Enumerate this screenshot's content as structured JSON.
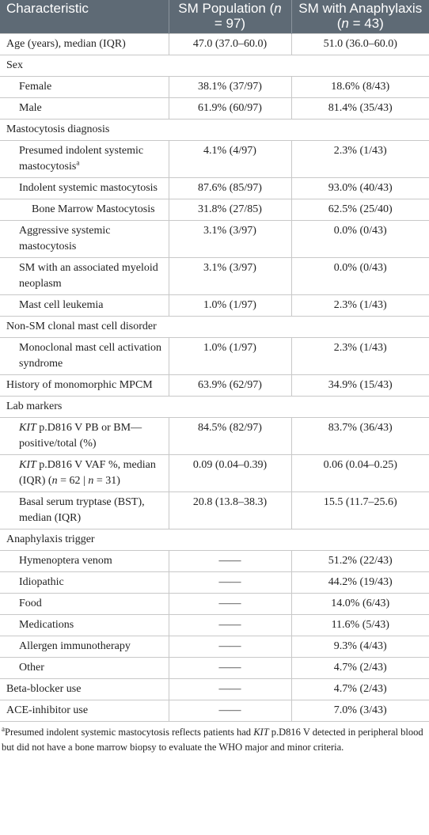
{
  "table": {
    "header": [
      "Characteristic",
      [
        "SM Population (",
        {
          "text": "n",
          "style": "italic"
        },
        " = 97)"
      ],
      [
        "SM with Anaphylaxis (",
        {
          "text": "n",
          "style": "italic"
        },
        " = 43)"
      ]
    ],
    "rows": [
      {
        "cells": [
          "Age (years), median (IQR)",
          "47.0 (37.0–60.0)",
          "51.0 (36.0–60.0)"
        ]
      },
      {
        "cells": [
          "Sex"
        ],
        "rows": [
          {
            "cells": [
              "Female",
              "38.1% (37/97)",
              "18.6% (8/43)"
            ]
          },
          {
            "cells": [
              "Male",
              "61.9% (60/97)",
              "81.4% (35/43)"
            ]
          }
        ]
      },
      {
        "cells": [
          "Mastocytosis diagnosis"
        ],
        "rows": [
          {
            "cells": [
              [
                "Presumed indolent systemic mastocytosis",
                {
                  "text": "a",
                  "style": "sup"
                }
              ],
              "4.1% (4/97)",
              "2.3% (1/43)"
            ]
          },
          {
            "cells": [
              "Indolent systemic mastocytosis",
              "87.6% (85/97)",
              "93.0% (40/43)"
            ],
            "rows": [
              {
                "cells": [
                  "Bone Marrow Mastocytosis",
                  "31.8% (27/85)",
                  "62.5% (25/40)"
                ]
              }
            ]
          },
          {
            "cells": [
              "Aggressive systemic mastocytosis",
              "3.1% (3/97)",
              "0.0% (0/43)"
            ]
          },
          {
            "cells": [
              "SM with an associated myeloid neoplasm",
              "3.1% (3/97)",
              "0.0% (0/43)"
            ]
          },
          {
            "cells": [
              "Mast cell leukemia",
              "1.0% (1/97)",
              "2.3% (1/43)"
            ]
          }
        ]
      },
      {
        "cells": [
          "Non-SM clonal mast cell disorder"
        ],
        "rows": [
          {
            "cells": [
              "Monoclonal mast cell activation syndrome",
              "1.0% (1/97)",
              "2.3% (1/43)"
            ]
          }
        ]
      },
      {
        "cells": [
          "History of monomorphic MPCM",
          "63.9% (62/97)",
          "34.9% (15/43)"
        ]
      },
      {
        "cells": [
          "Lab markers"
        ],
        "rows": [
          {
            "cells": [
              [
                {
                  "text": "KIT",
                  "style": "italic"
                },
                " p.D816 V PB or BM—positive/total (%)"
              ],
              "84.5% (82/97)",
              "83.7% (36/43)"
            ]
          },
          {
            "cells": [
              [
                {
                  "text": "KIT",
                  "style": "italic"
                },
                " p.D816 V VAF %, median (IQR) (",
                {
                  "text": "n",
                  "style": "italic"
                },
                " = 62 | ",
                {
                  "text": "n",
                  "style": "italic"
                },
                " = 31)"
              ],
              "0.09 (0.04–0.39)",
              "0.06 (0.04–0.25)"
            ]
          },
          {
            "cells": [
              "Basal serum tryptase (BST), median (IQR)",
              "20.8 (13.8–38.3)",
              "15.5 (11.7–25.6)"
            ]
          }
        ]
      },
      {
        "cells": [
          "Anaphylaxis trigger"
        ],
        "rows": [
          {
            "cells": [
              "Hymenoptera venom",
              "——",
              "51.2% (22/43)"
            ]
          },
          {
            "cells": [
              "Idiopathic",
              "——",
              "44.2% (19/43)"
            ]
          },
          {
            "cells": [
              "Food",
              "——",
              "14.0% (6/43)"
            ]
          },
          {
            "cells": [
              "Medications",
              "——",
              "11.6% (5/43)"
            ]
          },
          {
            "cells": [
              "Allergen immunotherapy",
              "——",
              "9.3% (4/43)"
            ]
          },
          {
            "cells": [
              "Other",
              "——",
              "4.7% (2/43)"
            ]
          }
        ]
      },
      {
        "cells": [
          "Beta-blocker use",
          "——",
          "4.7% (2/43)"
        ]
      },
      {
        "cells": [
          "ACE-inhibitor use",
          "——",
          "7.0% (3/43)"
        ]
      }
    ],
    "footnote": [
      {
        "text": "a",
        "style": "sup"
      },
      "Presumed indolent systemic mastocytosis reflects patients had ",
      {
        "text": "KIT",
        "style": "italic"
      },
      " p.D816 V detected in peripheral blood but did not have a bone marrow biopsy to evaluate the WHO major and minor criteria."
    ]
  }
}
